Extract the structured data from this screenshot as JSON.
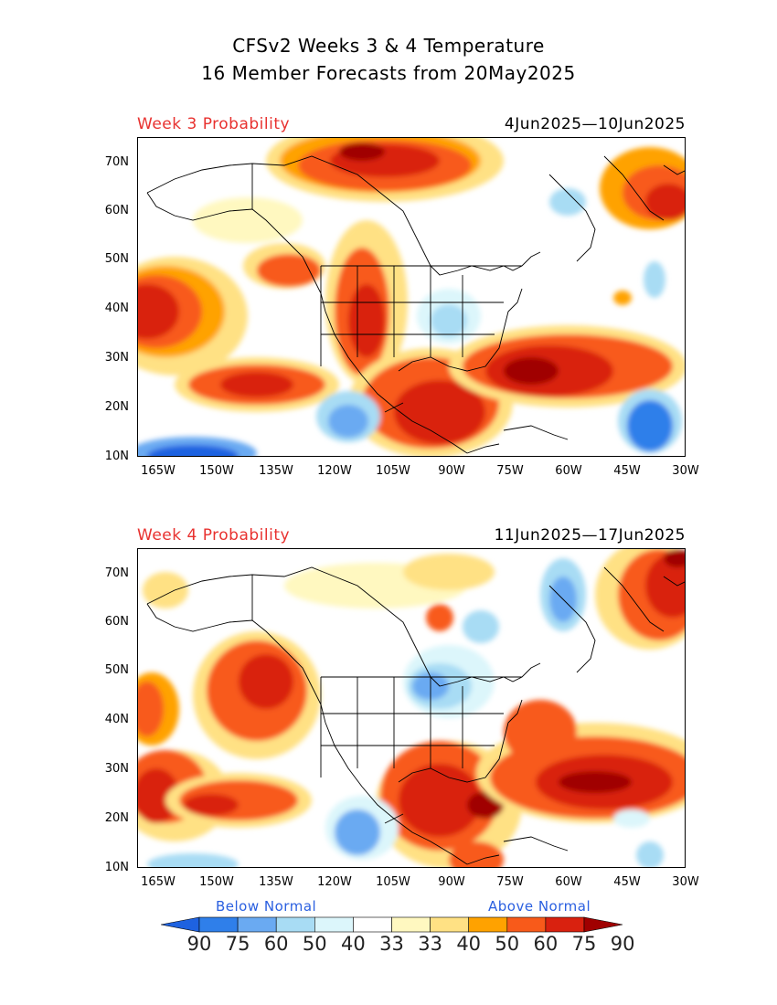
{
  "title": {
    "line1": "CFSv2 Weeks 3 & 4 Temperature",
    "line2": "16 Member Forecasts from 20May2025"
  },
  "panels": [
    {
      "label": "Week 3 Probability",
      "dates": "4Jun2025—10Jun2025"
    },
    {
      "label": "Week 4 Probability",
      "dates": "11Jun2025—17Jun2025"
    }
  ],
  "axes": {
    "y_ticks": [
      "70N",
      "60N",
      "50N",
      "40N",
      "30N",
      "20N",
      "10N"
    ],
    "x_ticks": [
      "165W",
      "150W",
      "135W",
      "120W",
      "105W",
      "90W",
      "75W",
      "60W",
      "45W",
      "30W"
    ]
  },
  "legend": {
    "below_label": "Below Normal",
    "above_label": "Above Normal",
    "values": [
      "90",
      "75",
      "60",
      "50",
      "40",
      "33",
      "33",
      "40",
      "50",
      "60",
      "75",
      "90"
    ],
    "colors": [
      "#1e62e0",
      "#2f7fea",
      "#6aaaf2",
      "#a8dcf4",
      "#dcf6fb",
      "#ffffff",
      "#fff8c0",
      "#ffe184",
      "#ffa200",
      "#f85a1a",
      "#d9210f",
      "#a00000"
    ]
  }
}
